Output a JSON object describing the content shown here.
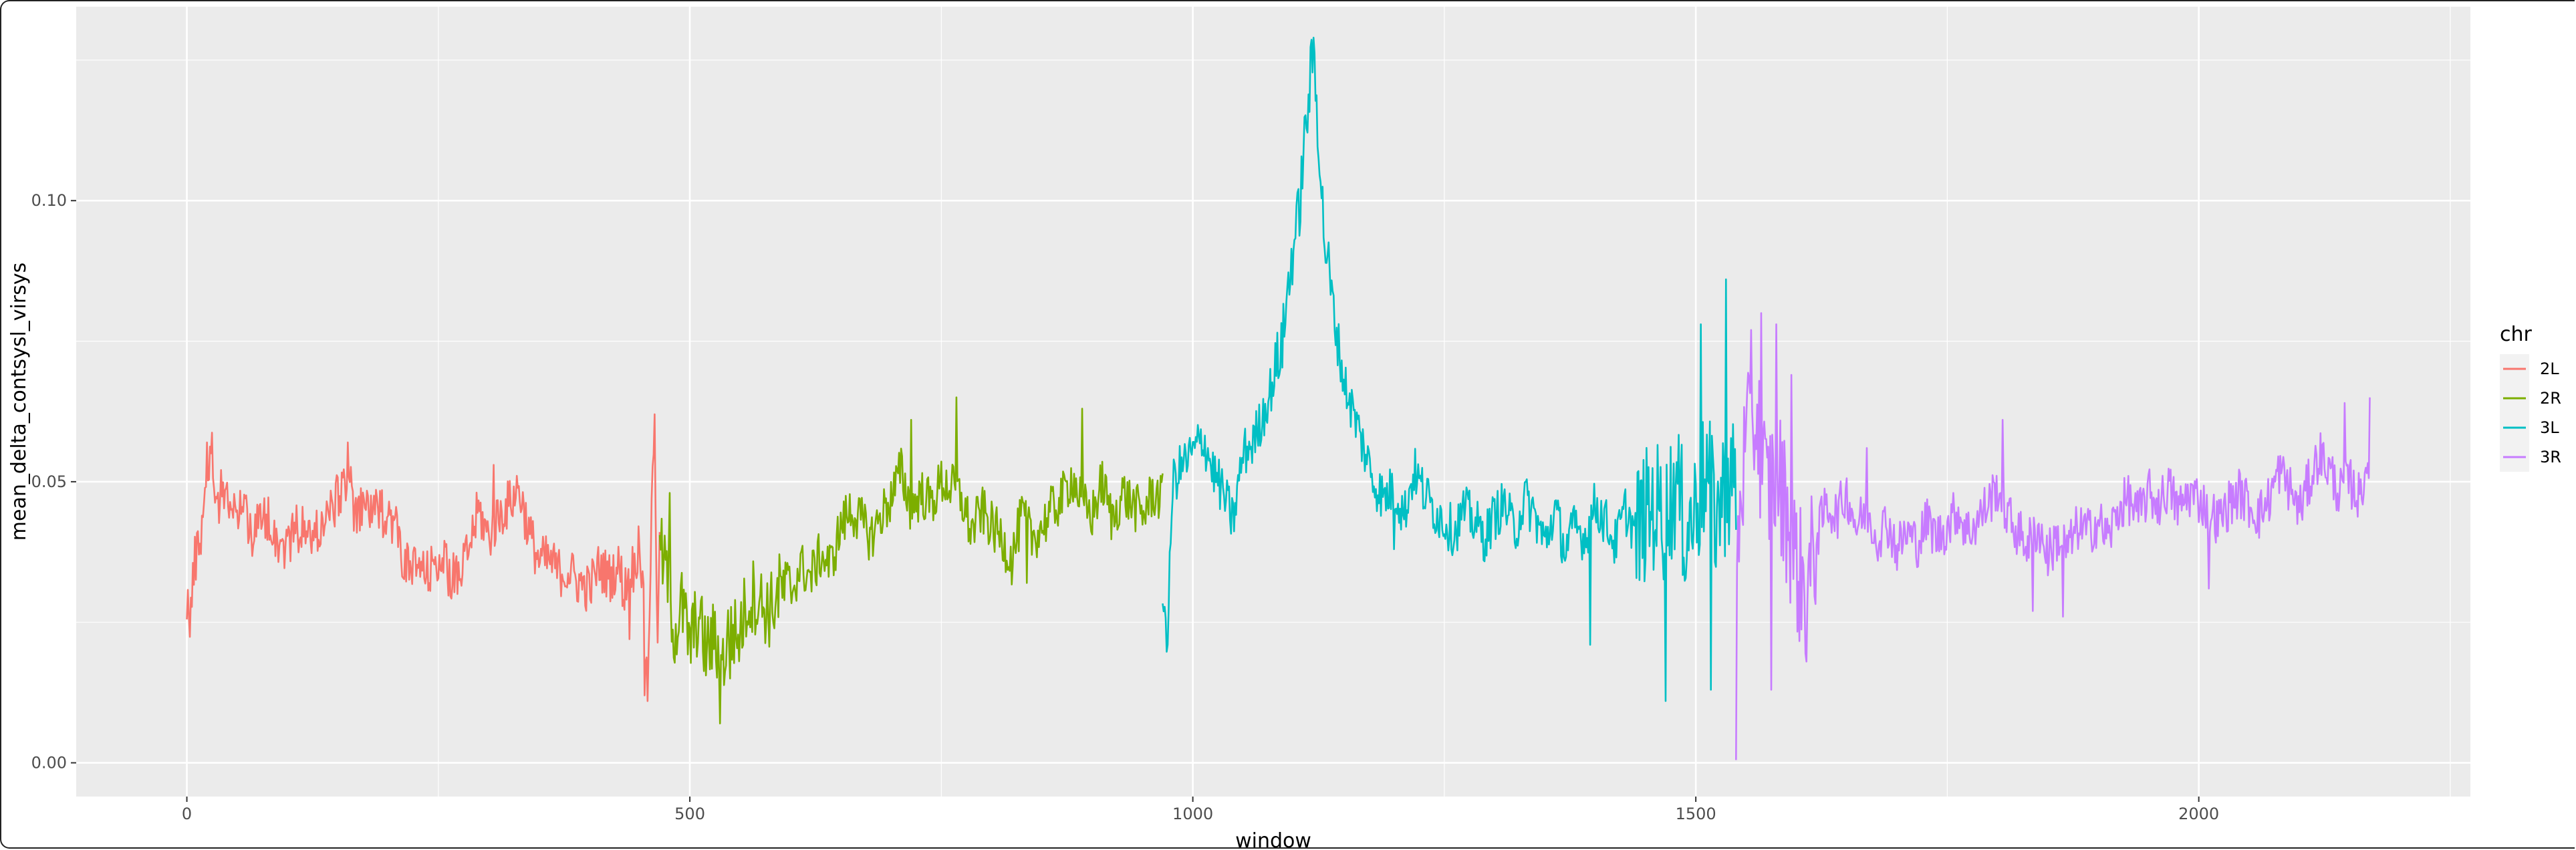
{
  "chart_data": {
    "type": "line",
    "xlabel": "window",
    "ylabel": "mean_delta_contsysl_virsys",
    "xlim": [
      -110,
      2270
    ],
    "ylim": [
      -0.006,
      0.1345
    ],
    "x_ticks": [
      0,
      500,
      1000,
      1500,
      2000
    ],
    "x_tick_labels": [
      "0",
      "500",
      "1000",
      "1500",
      "2000"
    ],
    "y_ticks": [
      0.0,
      0.05,
      0.1
    ],
    "y_tick_labels": [
      "0.00",
      "0.05",
      "0.10"
    ],
    "grid": true,
    "legend": {
      "title": "chr",
      "position": "right"
    },
    "series": [
      {
        "name": "2L",
        "color": "#F8766D",
        "x_range": [
          0,
          470
        ],
        "points": [
          [
            0,
            0.03
          ],
          [
            3,
            0.025
          ],
          [
            8,
            0.036
          ],
          [
            15,
            0.042
          ],
          [
            20,
            0.052
          ],
          [
            25,
            0.055
          ],
          [
            30,
            0.046
          ],
          [
            38,
            0.05
          ],
          [
            45,
            0.043
          ],
          [
            55,
            0.047
          ],
          [
            65,
            0.041
          ],
          [
            80,
            0.044
          ],
          [
            95,
            0.038
          ],
          [
            110,
            0.042
          ],
          [
            125,
            0.04
          ],
          [
            140,
            0.044
          ],
          [
            150,
            0.047
          ],
          [
            160,
            0.052
          ],
          [
            168,
            0.043
          ],
          [
            178,
            0.046
          ],
          [
            190,
            0.044
          ],
          [
            200,
            0.045
          ],
          [
            210,
            0.041
          ],
          [
            215,
            0.036
          ],
          [
            222,
            0.034
          ],
          [
            230,
            0.035
          ],
          [
            240,
            0.033
          ],
          [
            250,
            0.037
          ],
          [
            260,
            0.034
          ],
          [
            270,
            0.032
          ],
          [
            280,
            0.038
          ],
          [
            290,
            0.045
          ],
          [
            300,
            0.04
          ],
          [
            310,
            0.044
          ],
          [
            320,
            0.046
          ],
          [
            330,
            0.049
          ],
          [
            340,
            0.041
          ],
          [
            350,
            0.036
          ],
          [
            360,
            0.036
          ],
          [
            370,
            0.034
          ],
          [
            380,
            0.034
          ],
          [
            390,
            0.032
          ],
          [
            400,
            0.031
          ],
          [
            410,
            0.035
          ],
          [
            420,
            0.033
          ],
          [
            425,
            0.034
          ],
          [
            430,
            0.035
          ],
          [
            435,
            0.03
          ],
          [
            440,
            0.036
          ],
          [
            445,
            0.034
          ],
          [
            450,
            0.041
          ],
          [
            455,
            0.024
          ],
          [
            458,
            0.013
          ],
          [
            462,
            0.044
          ],
          [
            465,
            0.062
          ],
          [
            468,
            0.017
          ],
          [
            470,
            0.044
          ]
        ],
        "peaks": [
          [
            20,
            0.057
          ],
          [
            160,
            0.057
          ],
          [
            305,
            0.053
          ],
          [
            440,
            0.022
          ],
          [
            455,
            0.012
          ],
          [
            465,
            0.062
          ]
        ]
      },
      {
        "name": "2R",
        "color": "#7CAE00",
        "x_range": [
          470,
          970
        ],
        "points": [
          [
            470,
            0.038
          ],
          [
            478,
            0.033
          ],
          [
            485,
            0.023
          ],
          [
            492,
            0.028
          ],
          [
            500,
            0.021
          ],
          [
            508,
            0.026
          ],
          [
            516,
            0.02
          ],
          [
            524,
            0.022
          ],
          [
            532,
            0.017
          ],
          [
            540,
            0.024
          ],
          [
            548,
            0.022
          ],
          [
            556,
            0.028
          ],
          [
            564,
            0.03
          ],
          [
            572,
            0.028
          ],
          [
            580,
            0.027
          ],
          [
            590,
            0.031
          ],
          [
            600,
            0.03
          ],
          [
            610,
            0.035
          ],
          [
            620,
            0.033
          ],
          [
            630,
            0.037
          ],
          [
            640,
            0.035
          ],
          [
            650,
            0.042
          ],
          [
            660,
            0.045
          ],
          [
            670,
            0.043
          ],
          [
            680,
            0.04
          ],
          [
            690,
            0.044
          ],
          [
            700,
            0.047
          ],
          [
            710,
            0.052
          ],
          [
            720,
            0.045
          ],
          [
            730,
            0.048
          ],
          [
            740,
            0.046
          ],
          [
            750,
            0.05
          ],
          [
            760,
            0.049
          ],
          [
            770,
            0.047
          ],
          [
            780,
            0.041
          ],
          [
            790,
            0.045
          ],
          [
            800,
            0.042
          ],
          [
            810,
            0.04
          ],
          [
            820,
            0.036
          ],
          [
            830,
            0.044
          ],
          [
            840,
            0.04
          ],
          [
            850,
            0.042
          ],
          [
            860,
            0.045
          ],
          [
            870,
            0.047
          ],
          [
            880,
            0.051
          ],
          [
            890,
            0.046
          ],
          [
            900,
            0.044
          ],
          [
            910,
            0.05
          ],
          [
            920,
            0.043
          ],
          [
            930,
            0.048
          ],
          [
            940,
            0.046
          ],
          [
            950,
            0.044
          ],
          [
            960,
            0.048
          ],
          [
            970,
            0.047
          ]
        ],
        "peaks": [
          [
            480,
            0.048
          ],
          [
            530,
            0.007
          ],
          [
            540,
            0.015
          ],
          [
            720,
            0.061
          ],
          [
            765,
            0.065
          ],
          [
            890,
            0.063
          ],
          [
            835,
            0.032
          ]
        ]
      },
      {
        "name": "3L",
        "color": "#00BFC4",
        "x_range": [
          970,
          1540
        ],
        "points": [
          [
            970,
            0.031
          ],
          [
            975,
            0.022
          ],
          [
            980,
            0.05
          ],
          [
            990,
            0.053
          ],
          [
            1000,
            0.055
          ],
          [
            1010,
            0.058
          ],
          [
            1020,
            0.052
          ],
          [
            1030,
            0.048
          ],
          [
            1040,
            0.043
          ],
          [
            1050,
            0.055
          ],
          [
            1060,
            0.057
          ],
          [
            1070,
            0.062
          ],
          [
            1080,
            0.068
          ],
          [
            1090,
            0.076
          ],
          [
            1095,
            0.085
          ],
          [
            1100,
            0.092
          ],
          [
            1105,
            0.097
          ],
          [
            1110,
            0.108
          ],
          [
            1115,
            0.118
          ],
          [
            1120,
            0.127
          ],
          [
            1125,
            0.112
          ],
          [
            1130,
            0.095
          ],
          [
            1140,
            0.08
          ],
          [
            1150,
            0.068
          ],
          [
            1160,
            0.062
          ],
          [
            1170,
            0.056
          ],
          [
            1180,
            0.05
          ],
          [
            1190,
            0.047
          ],
          [
            1200,
            0.049
          ],
          [
            1210,
            0.044
          ],
          [
            1220,
            0.052
          ],
          [
            1230,
            0.048
          ],
          [
            1240,
            0.045
          ],
          [
            1250,
            0.043
          ],
          [
            1260,
            0.041
          ],
          [
            1270,
            0.045
          ],
          [
            1280,
            0.043
          ],
          [
            1290,
            0.04
          ],
          [
            1300,
            0.044
          ],
          [
            1310,
            0.046
          ],
          [
            1320,
            0.041
          ],
          [
            1330,
            0.047
          ],
          [
            1340,
            0.044
          ],
          [
            1350,
            0.039
          ],
          [
            1360,
            0.045
          ],
          [
            1370,
            0.038
          ],
          [
            1380,
            0.042
          ],
          [
            1390,
            0.04
          ],
          [
            1400,
            0.046
          ],
          [
            1410,
            0.043
          ],
          [
            1420,
            0.039
          ],
          [
            1430,
            0.045
          ],
          [
            1440,
            0.041
          ],
          [
            1450,
            0.044
          ],
          [
            1460,
            0.046
          ],
          [
            1470,
            0.043
          ],
          [
            1480,
            0.05
          ],
          [
            1490,
            0.041
          ],
          [
            1500,
            0.045
          ],
          [
            1510,
            0.052
          ],
          [
            1520,
            0.044
          ],
          [
            1530,
            0.049
          ],
          [
            1540,
            0.05
          ]
        ],
        "peaks": [
          [
            975,
            0.021
          ],
          [
            1120,
            0.129
          ],
          [
            1200,
            0.038
          ],
          [
            1395,
            0.021
          ],
          [
            1470,
            0.011
          ],
          [
            1505,
            0.078
          ],
          [
            1515,
            0.013
          ],
          [
            1530,
            0.086
          ]
        ]
      },
      {
        "name": "3R",
        "color": "#C77CFF",
        "x_range": [
          1540,
          2170
        ],
        "points": [
          [
            1540,
            0.03
          ],
          [
            1545,
            0.05
          ],
          [
            1550,
            0.055
          ],
          [
            1560,
            0.062
          ],
          [
            1570,
            0.048
          ],
          [
            1580,
            0.052
          ],
          [
            1590,
            0.045
          ],
          [
            1600,
            0.035
          ],
          [
            1610,
            0.03
          ],
          [
            1620,
            0.04
          ],
          [
            1630,
            0.046
          ],
          [
            1640,
            0.044
          ],
          [
            1650,
            0.048
          ],
          [
            1660,
            0.042
          ],
          [
            1670,
            0.045
          ],
          [
            1680,
            0.04
          ],
          [
            1690,
            0.043
          ],
          [
            1700,
            0.038
          ],
          [
            1710,
            0.041
          ],
          [
            1720,
            0.039
          ],
          [
            1730,
            0.043
          ],
          [
            1740,
            0.04
          ],
          [
            1750,
            0.042
          ],
          [
            1760,
            0.045
          ],
          [
            1770,
            0.041
          ],
          [
            1780,
            0.043
          ],
          [
            1790,
            0.046
          ],
          [
            1800,
            0.049
          ],
          [
            1810,
            0.044
          ],
          [
            1820,
            0.041
          ],
          [
            1830,
            0.039
          ],
          [
            1840,
            0.042
          ],
          [
            1850,
            0.037
          ],
          [
            1860,
            0.04
          ],
          [
            1870,
            0.038
          ],
          [
            1880,
            0.042
          ],
          [
            1890,
            0.041
          ],
          [
            1900,
            0.043
          ],
          [
            1910,
            0.04
          ],
          [
            1920,
            0.045
          ],
          [
            1930,
            0.047
          ],
          [
            1940,
            0.044
          ],
          [
            1950,
            0.048
          ],
          [
            1960,
            0.046
          ],
          [
            1970,
            0.049
          ],
          [
            1980,
            0.045
          ],
          [
            1990,
            0.048
          ],
          [
            2000,
            0.047
          ],
          [
            2010,
            0.045
          ],
          [
            2020,
            0.043
          ],
          [
            2030,
            0.046
          ],
          [
            2040,
            0.048
          ],
          [
            2050,
            0.046
          ],
          [
            2060,
            0.044
          ],
          [
            2070,
            0.047
          ],
          [
            2080,
            0.052
          ],
          [
            2090,
            0.049
          ],
          [
            2100,
            0.045
          ],
          [
            2110,
            0.05
          ],
          [
            2120,
            0.055
          ],
          [
            2130,
            0.052
          ],
          [
            2140,
            0.048
          ],
          [
            2150,
            0.05
          ],
          [
            2160,
            0.047
          ],
          [
            2170,
            0.056
          ]
        ],
        "peaks": [
          [
            1540,
            0.0005
          ],
          [
            1555,
            0.077
          ],
          [
            1565,
            0.08
          ],
          [
            1580,
            0.078
          ],
          [
            1575,
            0.013
          ],
          [
            1610,
            0.018
          ],
          [
            1595,
            0.069
          ],
          [
            1670,
            0.056
          ],
          [
            1805,
            0.061
          ],
          [
            1835,
            0.027
          ],
          [
            1865,
            0.026
          ],
          [
            2010,
            0.031
          ],
          [
            2145,
            0.064
          ],
          [
            2170,
            0.065
          ]
        ]
      }
    ]
  }
}
